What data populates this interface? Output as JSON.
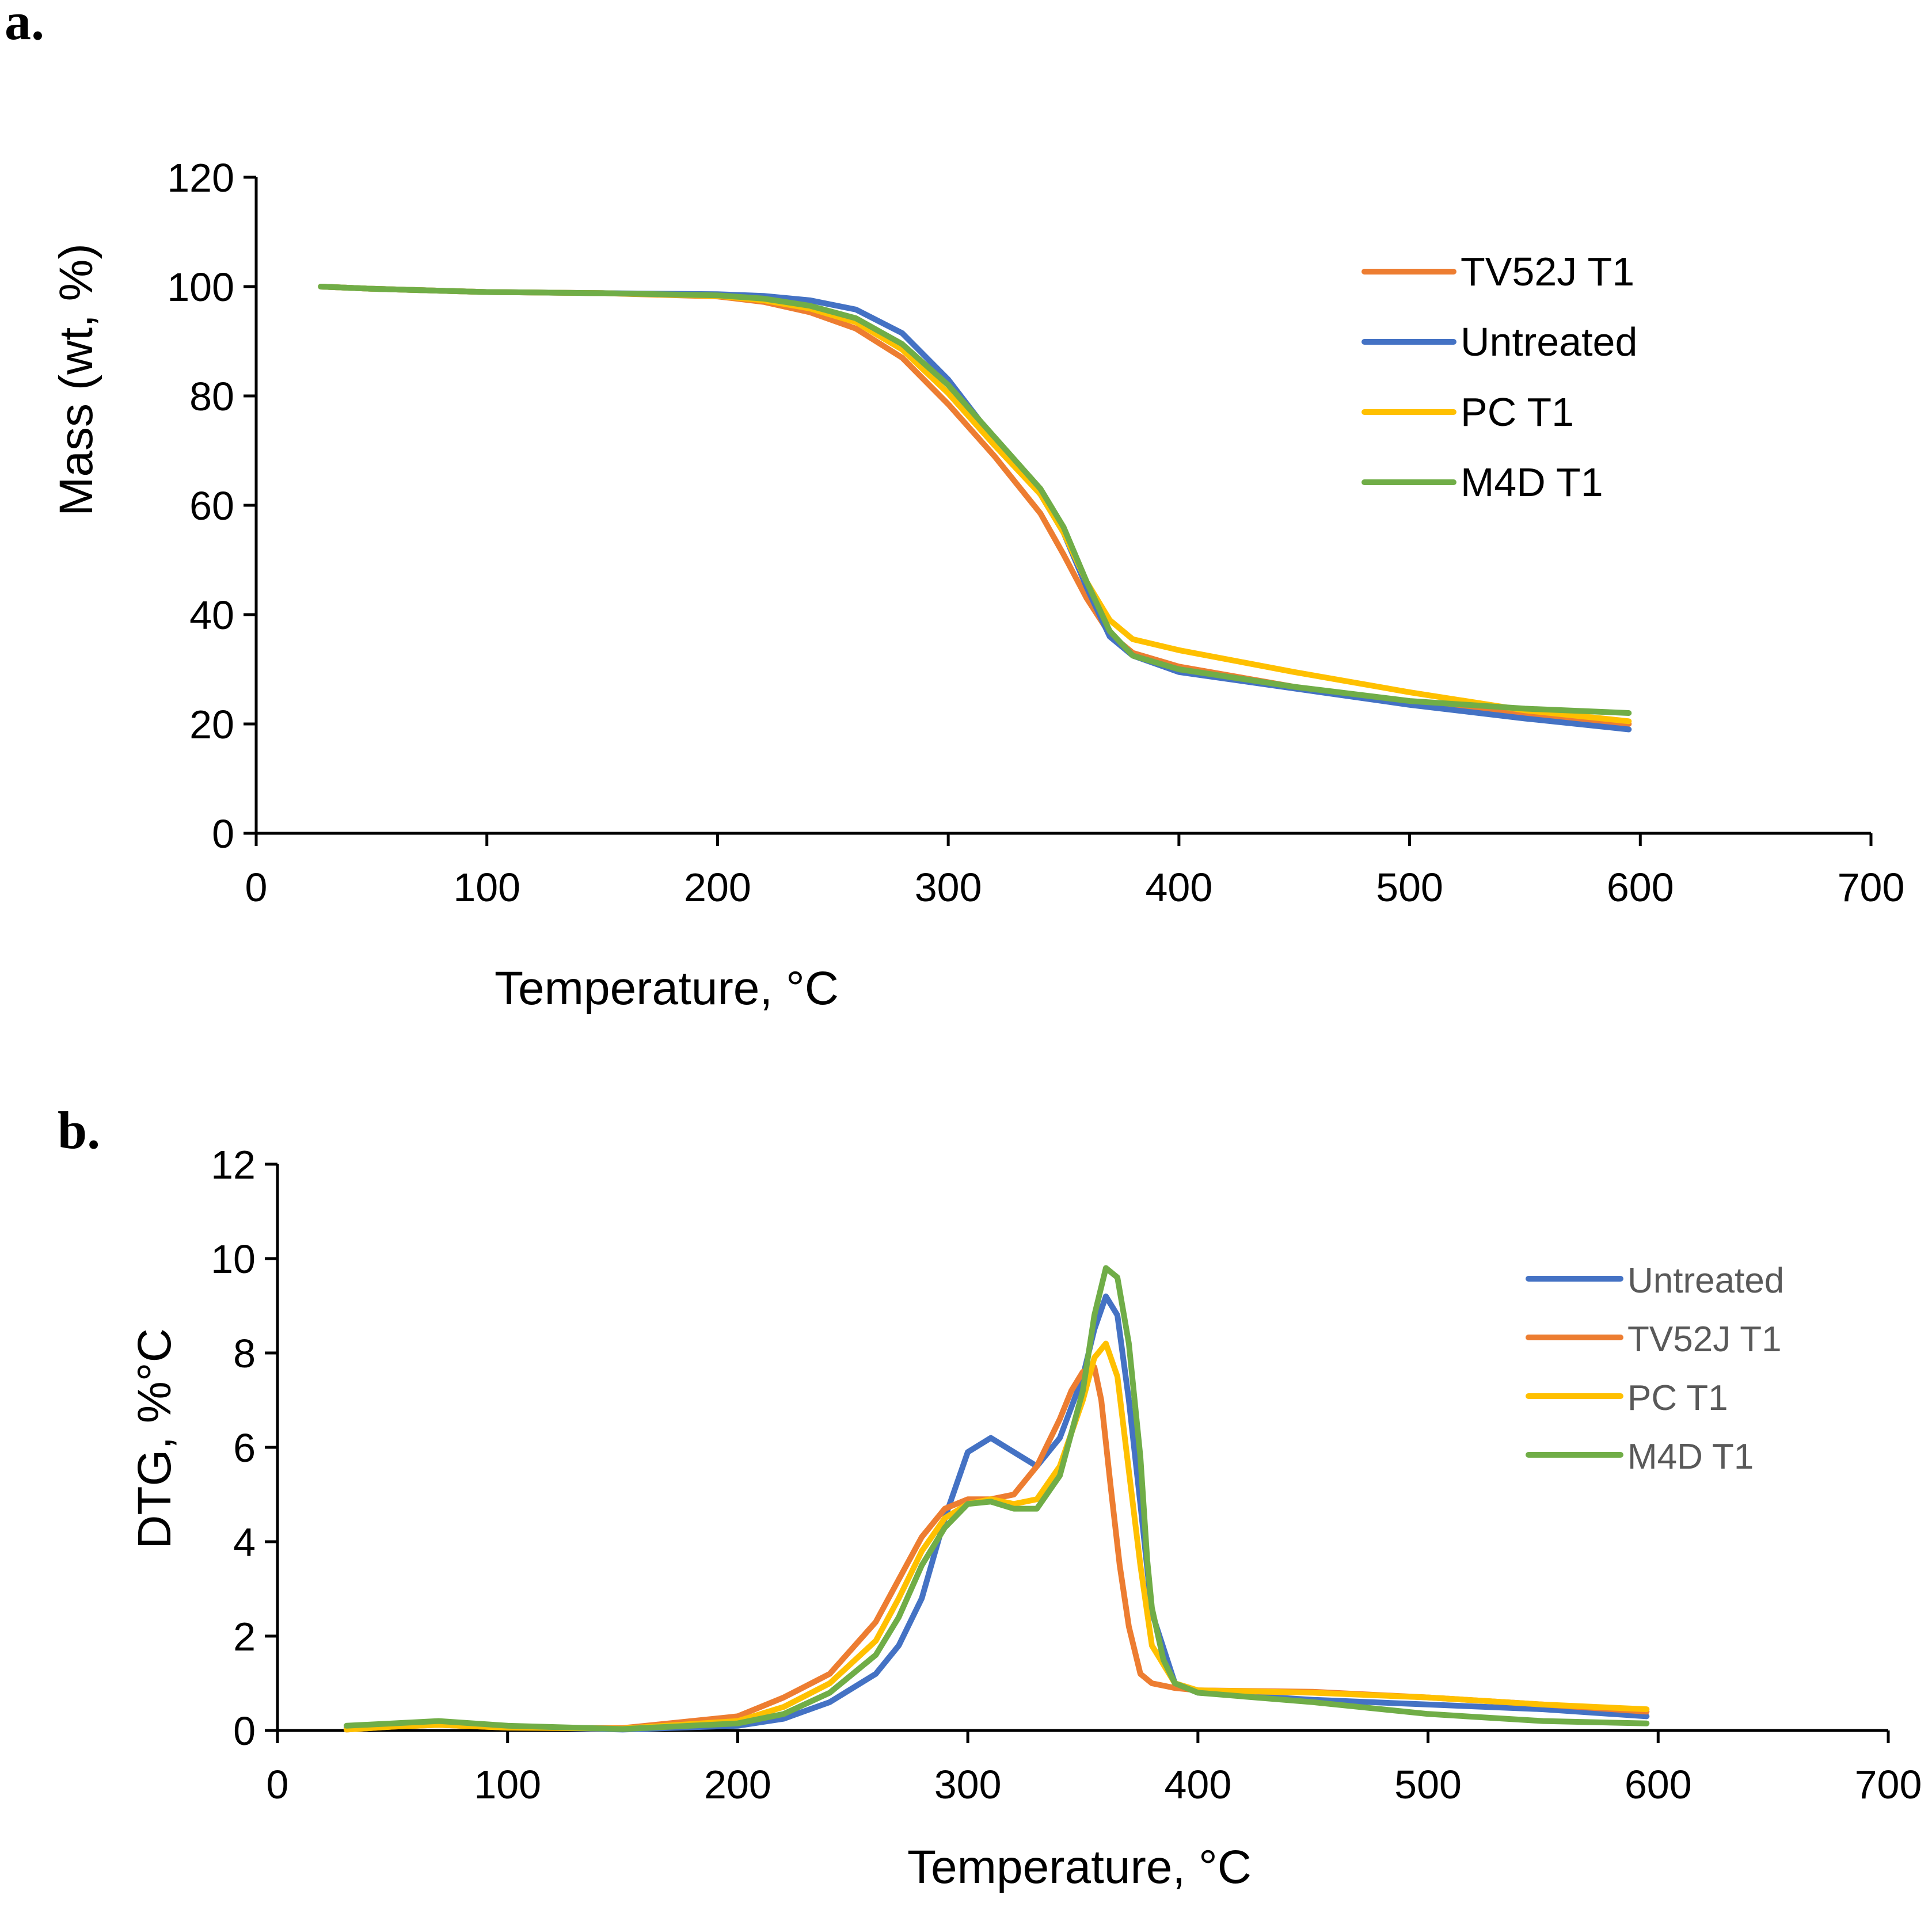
{
  "figure": {
    "panel_a_label": "a.",
    "panel_b_label": "b."
  },
  "colors": {
    "TV52J T1": "#ED7D31",
    "Untreated": "#4472C4",
    "PC T1": "#FFC000",
    "M4D T1": "#70AD47"
  },
  "chart_data": [
    {
      "id": "a",
      "type": "line",
      "title": "",
      "xlabel": "Temperature, °C",
      "ylabel": "Mass (wt, %)",
      "xlim": [
        0,
        700
      ],
      "ylim": [
        0,
        120
      ],
      "xticks": [
        0,
        100,
        200,
        300,
        400,
        500,
        600,
        700
      ],
      "yticks": [
        0,
        20,
        40,
        60,
        80,
        100,
        120
      ],
      "grid": false,
      "legend": "top-right",
      "legend_order": [
        "TV52J T1",
        "Untreated",
        "PC T1",
        "M4D T1"
      ],
      "series": [
        {
          "name": "TV52J T1",
          "x": [
            28,
            50,
            100,
            150,
            200,
            220,
            240,
            260,
            280,
            300,
            320,
            340,
            350,
            360,
            370,
            380,
            400,
            450,
            500,
            550,
            595
          ],
          "y": [
            100,
            99.6,
            99,
            98.8,
            98.2,
            97.2,
            95.3,
            92.3,
            87,
            78.5,
            69,
            58.5,
            51,
            43,
            36.5,
            33,
            30.5,
            26.8,
            23.8,
            21.8,
            20
          ]
        },
        {
          "name": "Untreated",
          "x": [
            28,
            50,
            100,
            150,
            200,
            220,
            240,
            260,
            280,
            300,
            320,
            340,
            350,
            360,
            370,
            380,
            400,
            450,
            500,
            550,
            595
          ],
          "y": [
            100,
            99.6,
            99,
            98.8,
            98.6,
            98.3,
            97.5,
            95.8,
            91.5,
            83,
            72,
            62,
            55,
            45,
            36,
            32.5,
            29.5,
            26.5,
            23.5,
            21,
            19
          ]
        },
        {
          "name": "PC T1",
          "x": [
            28,
            50,
            100,
            150,
            200,
            220,
            240,
            260,
            280,
            300,
            320,
            340,
            350,
            360,
            370,
            380,
            400,
            450,
            500,
            550,
            595
          ],
          "y": [
            100,
            99.6,
            99,
            98.8,
            98.3,
            97.5,
            96,
            93.5,
            88.5,
            80.5,
            71,
            62,
            55,
            46,
            39,
            35.5,
            33.5,
            29.5,
            25.8,
            22.5,
            20.5
          ]
        },
        {
          "name": "M4D T1",
          "x": [
            28,
            50,
            100,
            150,
            200,
            220,
            240,
            260,
            280,
            300,
            320,
            340,
            350,
            360,
            370,
            380,
            400,
            450,
            500,
            550,
            595
          ],
          "y": [
            100,
            99.6,
            99,
            98.8,
            98.4,
            97.8,
            96.5,
            94.2,
            89.5,
            82,
            72.5,
            63,
            56,
            46,
            37,
            32.5,
            30,
            26.8,
            24.2,
            22.8,
            22
          ]
        }
      ]
    },
    {
      "id": "b",
      "type": "line",
      "title": "",
      "xlabel": "Temperature, °C",
      "ylabel": "DTG, %°C",
      "xlim": [
        0,
        700
      ],
      "ylim": [
        0,
        12
      ],
      "xticks": [
        0,
        100,
        200,
        300,
        400,
        500,
        600,
        700
      ],
      "yticks": [
        0,
        2,
        4,
        6,
        8,
        10,
        12
      ],
      "grid": false,
      "legend": "top-right",
      "legend_order": [
        "Untreated",
        "TV52J T1",
        "PC T1",
        "M4D T1"
      ],
      "series": [
        {
          "name": "Untreated",
          "x": [
            30,
            50,
            70,
            100,
            150,
            200,
            220,
            240,
            260,
            270,
            280,
            290,
            300,
            310,
            320,
            330,
            340,
            350,
            355,
            360,
            365,
            370,
            375,
            380,
            390,
            400,
            450,
            500,
            550,
            595
          ],
          "y": [
            0.05,
            0.12,
            0.18,
            0.08,
            0.02,
            0.1,
            0.25,
            0.6,
            1.2,
            1.8,
            2.8,
            4.5,
            5.9,
            6.2,
            5.9,
            5.6,
            6.2,
            7.5,
            8.5,
            9.2,
            8.8,
            7.0,
            4.8,
            2.5,
            1.0,
            0.8,
            0.65,
            0.55,
            0.45,
            0.3
          ]
        },
        {
          "name": "TV52J T1",
          "x": [
            30,
            50,
            70,
            100,
            150,
            200,
            220,
            240,
            260,
            270,
            280,
            290,
            300,
            310,
            320,
            330,
            340,
            345,
            350,
            355,
            358,
            362,
            366,
            370,
            375,
            380,
            390,
            400,
            450,
            500,
            550,
            595
          ],
          "y": [
            0.02,
            0.08,
            0.12,
            0.06,
            0.05,
            0.3,
            0.7,
            1.2,
            2.3,
            3.2,
            4.1,
            4.7,
            4.9,
            4.9,
            5.0,
            5.6,
            6.6,
            7.2,
            7.6,
            7.7,
            7.0,
            5.2,
            3.5,
            2.2,
            1.2,
            1.0,
            0.9,
            0.85,
            0.82,
            0.7,
            0.55,
            0.4
          ]
        },
        {
          "name": "PC T1",
          "x": [
            30,
            50,
            70,
            100,
            150,
            200,
            220,
            240,
            260,
            270,
            280,
            290,
            300,
            310,
            320,
            330,
            340,
            350,
            355,
            360,
            365,
            370,
            375,
            380,
            390,
            400,
            450,
            500,
            550,
            595
          ],
          "y": [
            0.02,
            0.08,
            0.12,
            0.06,
            0.04,
            0.2,
            0.5,
            1.0,
            1.9,
            2.8,
            3.8,
            4.5,
            4.8,
            4.9,
            4.8,
            4.9,
            5.6,
            7.0,
            7.9,
            8.2,
            7.5,
            5.5,
            3.5,
            1.8,
            1.0,
            0.85,
            0.8,
            0.7,
            0.55,
            0.45
          ]
        },
        {
          "name": "M4D T1",
          "x": [
            30,
            50,
            70,
            100,
            150,
            200,
            220,
            240,
            260,
            270,
            280,
            290,
            300,
            310,
            320,
            330,
            340,
            350,
            355,
            360,
            365,
            370,
            375,
            378,
            380,
            385,
            390,
            400,
            450,
            500,
            550,
            595
          ],
          "y": [
            0.1,
            0.15,
            0.2,
            0.1,
            0.03,
            0.15,
            0.35,
            0.8,
            1.6,
            2.4,
            3.5,
            4.3,
            4.8,
            4.85,
            4.7,
            4.7,
            5.4,
            7.2,
            8.8,
            9.8,
            9.6,
            8.2,
            5.8,
            3.6,
            2.6,
            1.5,
            1.0,
            0.8,
            0.6,
            0.35,
            0.2,
            0.15
          ]
        }
      ]
    }
  ]
}
